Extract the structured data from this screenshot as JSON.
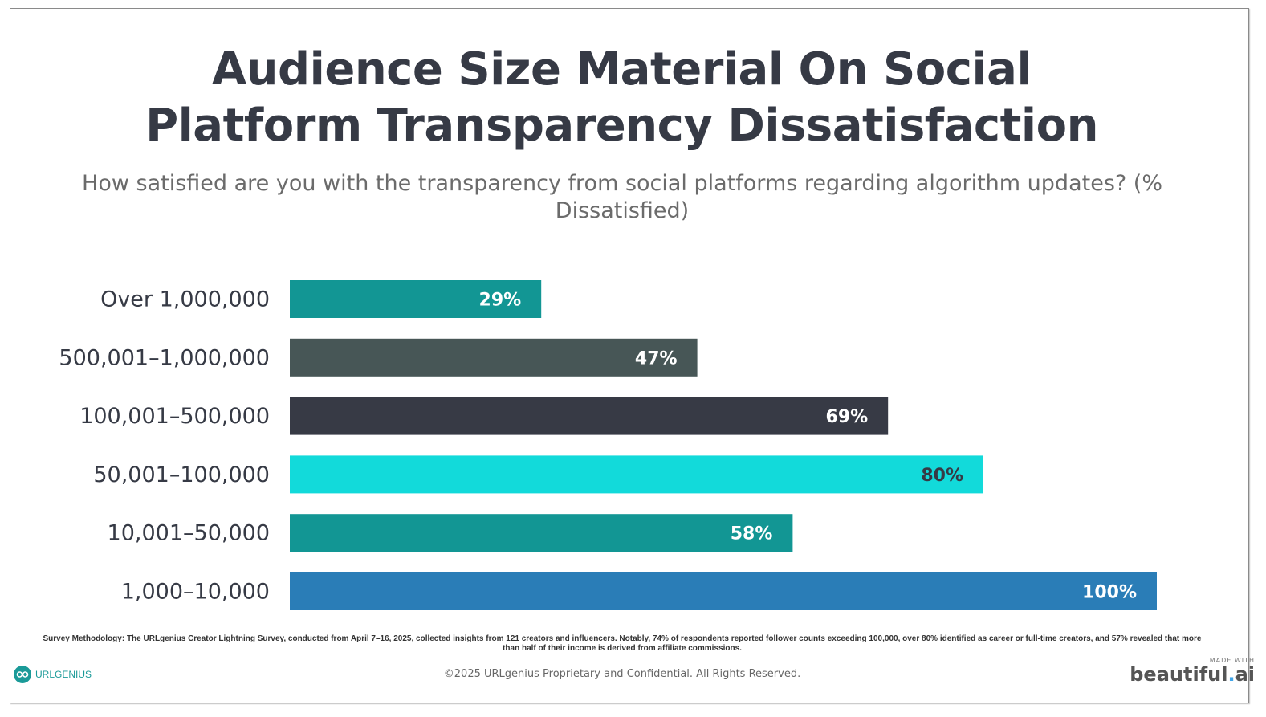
{
  "slide": {
    "title_line1": "Audience Size Material On Social",
    "title_line2": "Platform Transparency Dissatisfaction",
    "subtitle": "How satisfied are you with the transparency from social platforms regarding algorithm updates? (% Dissatisfied)",
    "methodology": "Survey Methodology: The URLgenius Creator Lightning Survey, conducted from April 7–16, 2025, collected insights from 121 creators and influencers. Notably, 74% of respondents reported follower counts exceeding 100,000, over 80% identified as career or full-time creators, and 57% revealed that more than half of their income is derived from affiliate commissions.",
    "copyright": "©2025 URLgenius Proprietary and Confidential. All Rights Reserved.",
    "logo_text": "URLGENIUS",
    "logo_icon": "glasses-icon",
    "made_with": "MADE WITH",
    "brand_main": "beautiful",
    "brand_dot": ".",
    "brand_suffix": "ai"
  },
  "chart_data": {
    "type": "bar",
    "orientation": "horizontal",
    "title": "Audience Size Material On Social Platform Transparency Dissatisfaction",
    "subtitle": "How satisfied are you with the transparency from social platforms regarding algorithm updates? (% Dissatisfied)",
    "xlabel": "",
    "ylabel": "",
    "xlim": [
      0,
      100
    ],
    "grid": false,
    "legend": "none",
    "categories": [
      "Over 1,000,000",
      "500,001–1,000,000",
      "100,001–500,000",
      "50,001–100,000",
      "10,001–50,000",
      "1,000–10,000"
    ],
    "values": [
      29,
      47,
      69,
      80,
      58,
      100
    ],
    "value_labels": [
      "29%",
      "47%",
      "69%",
      "80%",
      "58%",
      "100%"
    ],
    "colors": [
      "#129694",
      "#475656",
      "#373a45",
      "#12dada",
      "#129694",
      "#2a7db7"
    ],
    "label_colors": [
      "#ffffff",
      "#ffffff",
      "#ffffff",
      "#363a45",
      "#ffffff",
      "#ffffff"
    ]
  }
}
